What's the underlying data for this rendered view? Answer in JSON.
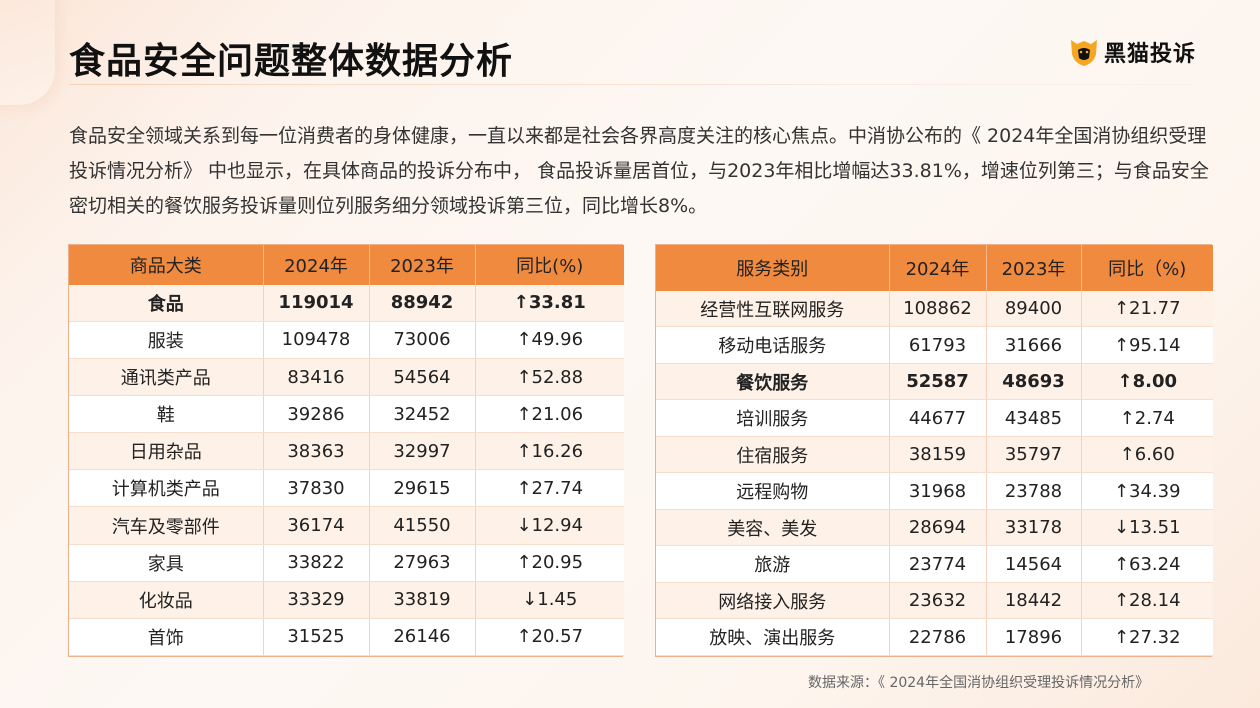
{
  "title": "食品安全问题整体数据分析",
  "logo": {
    "text": "黑猫投诉"
  },
  "intro": "食品安全领域关系到每一位消费者的身体健康，一直以来都是社会各界高度关注的核心焦点。中消协公布的《 2024年全国消协组织受理投诉情况分析》 中也显示，在具体商品的投诉分布中， 食品投诉量居首位，与2023年相比增幅达33.81%，增速位列第三；与食品安全密切相关的餐饮服务投诉量则位列服务细分领域投诉第三位，同比增长8%。",
  "colors": {
    "header": "#f08a3e",
    "accent": "#f5a06a"
  },
  "left_table": {
    "headers": [
      "商品大类",
      "2024年",
      "2023年",
      "同比(%)"
    ],
    "rows": [
      [
        "食品",
        "119014",
        "88942",
        "↑33.81"
      ],
      [
        "服装",
        "109478",
        "73006",
        "↑49.96"
      ],
      [
        "通讯类产品",
        "83416",
        "54564",
        "↑52.88"
      ],
      [
        "鞋",
        "39286",
        "32452",
        "↑21.06"
      ],
      [
        "日用杂品",
        "38363",
        "32997",
        "↑16.26"
      ],
      [
        "计算机类产品",
        "37830",
        "29615",
        "↑27.74"
      ],
      [
        "汽车及零部件",
        "36174",
        "41550",
        "↓12.94"
      ],
      [
        "家具",
        "33822",
        "27963",
        "↑20.95"
      ],
      [
        "化妆品",
        "33329",
        "33819",
        "↓1.45"
      ],
      [
        "首饰",
        "31525",
        "26146",
        "↑20.57"
      ]
    ]
  },
  "right_table": {
    "headers": [
      "服务类别",
      "2024年",
      "2023年",
      "同比（%)"
    ],
    "rows": [
      [
        "经营性互联网服务",
        "108862",
        "89400",
        "↑21.77"
      ],
      [
        "移动电话服务",
        "61793",
        "31666",
        "↑95.14"
      ],
      [
        "餐饮服务",
        "52587",
        "48693",
        "↑8.00"
      ],
      [
        "培训服务",
        "44677",
        "43485",
        "↑2.74"
      ],
      [
        "住宿服务",
        "38159",
        "35797",
        "↑6.60"
      ],
      [
        "远程购物",
        "31968",
        "23788",
        "↑34.39"
      ],
      [
        "美容、美发",
        "28694",
        "33178",
        "↓13.51"
      ],
      [
        "旅游",
        "23774",
        "14564",
        "↑63.24"
      ],
      [
        "网络接入服务",
        "23632",
        "18442",
        "↑28.14"
      ],
      [
        "放映、演出服务",
        "22786",
        "17896",
        "↑27.32"
      ]
    ]
  },
  "source": "数据来源：《 2024年全国消协组织受理投诉情况分析》"
}
